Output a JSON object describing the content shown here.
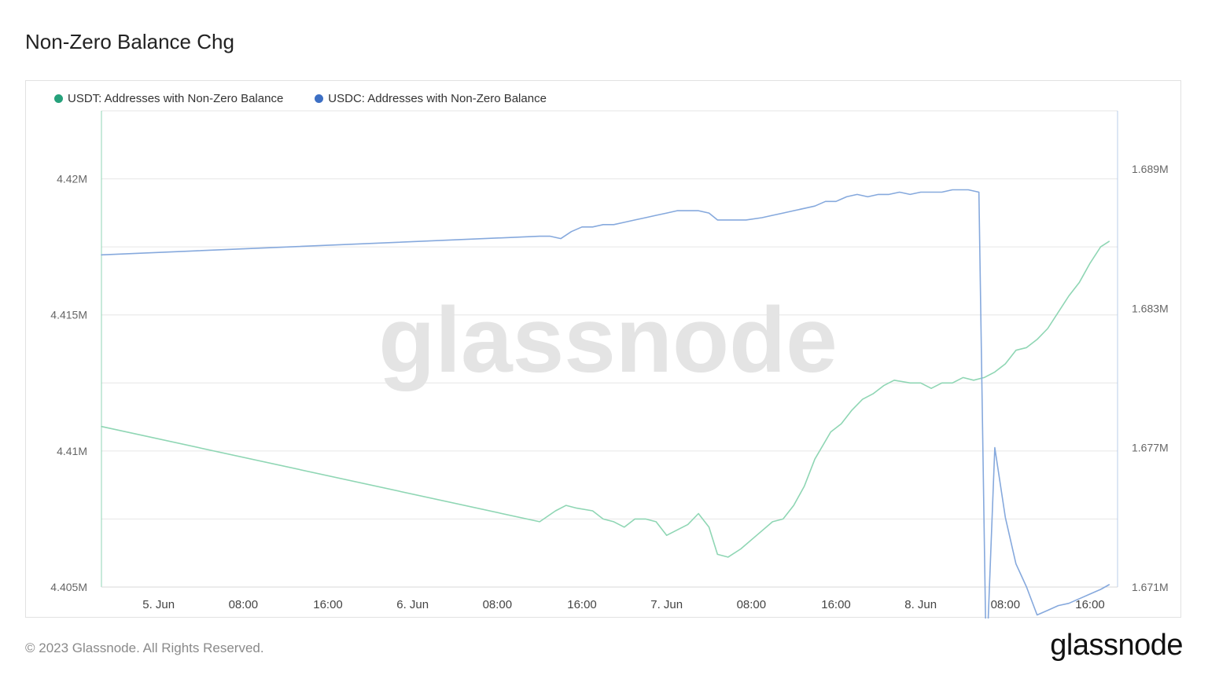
{
  "title": "Non-Zero Balance Chg",
  "footer": {
    "copyright": "© 2023 Glassnode. All Rights Reserved.",
    "logo": "glassnode"
  },
  "watermark": "glassnode",
  "chart_data": {
    "type": "line",
    "x_tick_labels": [
      "5. Jun",
      "08:00",
      "16:00",
      "6. Jun",
      "08:00",
      "16:00",
      "7. Jun",
      "08:00",
      "16:00",
      "8. Jun",
      "08:00",
      "16:00"
    ],
    "x_tick_hours": [
      24,
      32,
      40,
      48,
      56,
      64,
      72,
      80,
      88,
      96,
      104,
      112
    ],
    "x_range_hours": [
      18.6,
      114.6
    ],
    "y_left": {
      "ticks": [
        "4.405M",
        "4.41M",
        "4.415M",
        "4.42M"
      ],
      "min": 4.405,
      "max": 4.4225,
      "unit": "M"
    },
    "y_right": {
      "ticks": [
        "1.671M",
        "1.677M",
        "1.683M",
        "1.689M"
      ],
      "min": 1.671,
      "max": 1.6915,
      "unit": "M"
    },
    "grid": true,
    "legend_position": "top-left",
    "series": [
      {
        "name": "USDT: Addresses with Non-Zero Balance",
        "axis": "left",
        "color": "#26a17b",
        "line_color": "#8fd6b4",
        "points": [
          [
            18.6,
            4.4109
          ],
          [
            60.0,
            4.4074
          ],
          [
            61.5,
            4.4078
          ],
          [
            62.5,
            4.408
          ],
          [
            63.5,
            4.4079
          ],
          [
            65.0,
            4.4078
          ],
          [
            66.0,
            4.4075
          ],
          [
            67.0,
            4.4074
          ],
          [
            68.0,
            4.4072
          ],
          [
            69.0,
            4.4075
          ],
          [
            70.0,
            4.4075
          ],
          [
            71.0,
            4.4074
          ],
          [
            72.0,
            4.4069
          ],
          [
            73.0,
            4.4071
          ],
          [
            74.0,
            4.4073
          ],
          [
            75.0,
            4.4077
          ],
          [
            76.0,
            4.4072
          ],
          [
            76.8,
            4.4062
          ],
          [
            77.8,
            4.4061
          ],
          [
            79.0,
            4.4064
          ],
          [
            80.5,
            4.4069
          ],
          [
            82.0,
            4.4074
          ],
          [
            83.0,
            4.4075
          ],
          [
            84.0,
            4.408
          ],
          [
            85.0,
            4.4087
          ],
          [
            86.0,
            4.4097
          ],
          [
            87.5,
            4.4107
          ],
          [
            88.5,
            4.411
          ],
          [
            89.5,
            4.4115
          ],
          [
            90.5,
            4.4119
          ],
          [
            91.5,
            4.4121
          ],
          [
            92.5,
            4.4124
          ],
          [
            93.5,
            4.4126
          ],
          [
            95.0,
            4.4125
          ],
          [
            96.0,
            4.4125
          ],
          [
            97.0,
            4.4123
          ],
          [
            98.0,
            4.4125
          ],
          [
            99.0,
            4.4125
          ],
          [
            100.0,
            4.4127
          ],
          [
            101.0,
            4.4126
          ],
          [
            102.0,
            4.4127
          ],
          [
            103.0,
            4.4129
          ],
          [
            104.0,
            4.4132
          ],
          [
            105.0,
            4.4137
          ],
          [
            106.0,
            4.4138
          ],
          [
            107.0,
            4.4141
          ],
          [
            108.0,
            4.4145
          ],
          [
            109.0,
            4.4151
          ],
          [
            110.0,
            4.4157
          ],
          [
            111.0,
            4.4162
          ],
          [
            112.0,
            4.4169
          ],
          [
            113.0,
            4.4175
          ],
          [
            113.8,
            4.4177
          ]
        ]
      },
      {
        "name": "USDC: Addresses with Non-Zero Balance",
        "axis": "right",
        "color": "#3d6fc4",
        "line_color": "#86a9dd",
        "points": [
          [
            18.6,
            1.6853
          ],
          [
            60.0,
            1.6861
          ],
          [
            61.0,
            1.6861
          ],
          [
            62.0,
            1.686
          ],
          [
            63.0,
            1.6863
          ],
          [
            64.0,
            1.6865
          ],
          [
            65.0,
            1.6865
          ],
          [
            66.0,
            1.6866
          ],
          [
            67.0,
            1.6866
          ],
          [
            68.0,
            1.6867
          ],
          [
            69.0,
            1.6868
          ],
          [
            70.0,
            1.6869
          ],
          [
            71.0,
            1.687
          ],
          [
            72.0,
            1.6871
          ],
          [
            73.0,
            1.6872
          ],
          [
            74.0,
            1.6872
          ],
          [
            75.0,
            1.6872
          ],
          [
            76.0,
            1.6871
          ],
          [
            76.8,
            1.6868
          ],
          [
            78.0,
            1.6868
          ],
          [
            79.5,
            1.6868
          ],
          [
            81.0,
            1.6869
          ],
          [
            82.0,
            1.687
          ],
          [
            83.0,
            1.6871
          ],
          [
            84.0,
            1.6872
          ],
          [
            85.0,
            1.6873
          ],
          [
            86.0,
            1.6874
          ],
          [
            87.0,
            1.6876
          ],
          [
            88.0,
            1.6876
          ],
          [
            89.0,
            1.6878
          ],
          [
            90.0,
            1.6879
          ],
          [
            91.0,
            1.6878
          ],
          [
            92.0,
            1.6879
          ],
          [
            93.0,
            1.6879
          ],
          [
            94.0,
            1.688
          ],
          [
            95.0,
            1.6879
          ],
          [
            96.0,
            1.688
          ],
          [
            97.0,
            1.688
          ],
          [
            98.0,
            1.688
          ],
          [
            99.0,
            1.6881
          ],
          [
            100.5,
            1.6881
          ],
          [
            101.5,
            1.688
          ],
          [
            102.2,
            1.6675
          ],
          [
            103.0,
            1.677
          ],
          [
            104.0,
            1.674
          ],
          [
            105.0,
            1.672
          ],
          [
            106.0,
            1.671
          ],
          [
            107.0,
            1.6698
          ],
          [
            108.0,
            1.67
          ],
          [
            109.0,
            1.6702
          ],
          [
            110.0,
            1.6703
          ],
          [
            111.0,
            1.6705
          ],
          [
            112.0,
            1.6707
          ],
          [
            113.0,
            1.6709
          ],
          [
            113.8,
            1.6711
          ]
        ]
      }
    ]
  }
}
